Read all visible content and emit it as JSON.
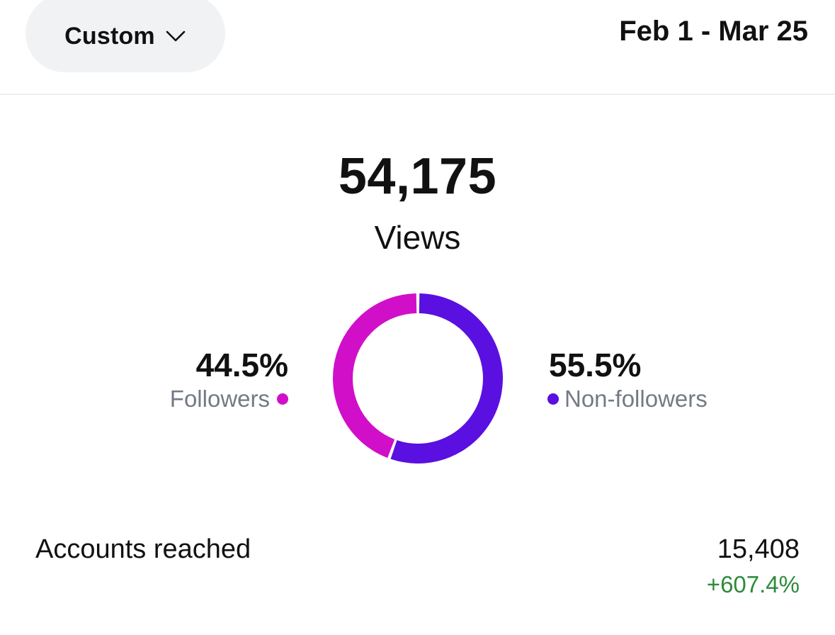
{
  "header": {
    "range_selector_label": "Custom",
    "date_range": "Feb 1 - Mar 25"
  },
  "summary": {
    "total": "54,175",
    "total_label": "Views"
  },
  "audience": {
    "followers": {
      "percent_text": "44.5%",
      "label": "Followers",
      "value": 44.5,
      "color": "#d10fc8"
    },
    "non_followers": {
      "percent_text": "55.5%",
      "label": "Non-followers",
      "value": 55.5,
      "color": "#5a10e0"
    }
  },
  "metrics": {
    "accounts_reached": {
      "label": "Accounts reached",
      "value": "15,408",
      "change": "+607.4%",
      "change_color": "#2e8b3a"
    }
  },
  "icons": {
    "range_chevron": "chevron-down-icon"
  }
}
